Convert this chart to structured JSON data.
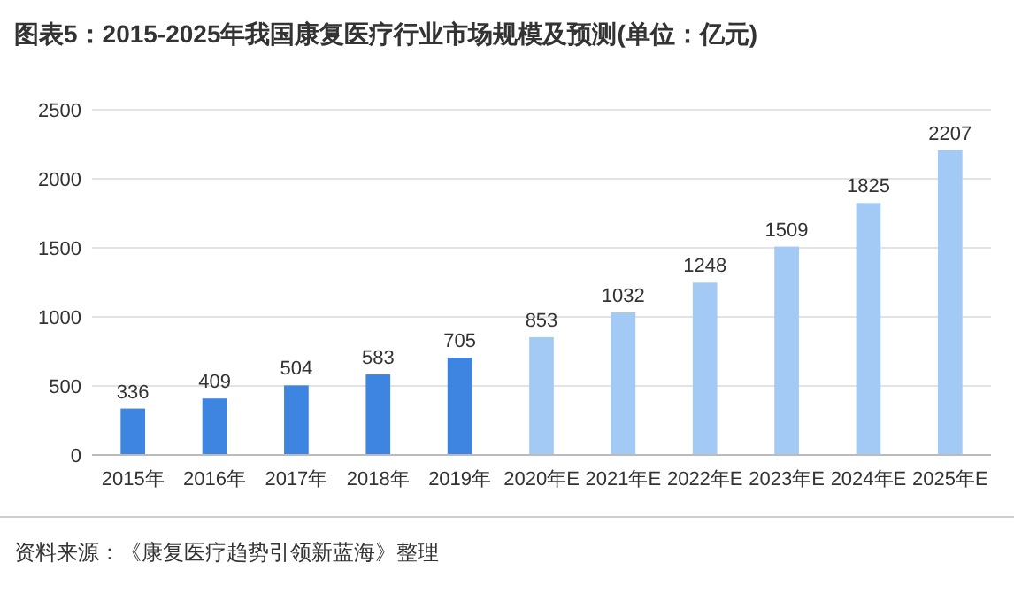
{
  "chart_data": {
    "type": "bar",
    "title": "图表5：2015-2025年我国康复医疗行业市场规模及预测(单位：亿元)",
    "categories": [
      "2015年",
      "2016年",
      "2017年",
      "2018年",
      "2019年",
      "2020年E",
      "2021年E",
      "2022年E",
      "2023年E",
      "2024年E",
      "2025年E"
    ],
    "values": [
      336,
      409,
      504,
      583,
      705,
      853,
      1032,
      1248,
      1509,
      1825,
      2207
    ],
    "colors": [
      "#3d85e0",
      "#3d85e0",
      "#3d85e0",
      "#3d85e0",
      "#3d85e0",
      "#a3c9f5",
      "#a3c9f5",
      "#a3c9f5",
      "#a3c9f5",
      "#a3c9f5",
      "#a3c9f5"
    ],
    "ylim": [
      0,
      2500
    ],
    "yticks": [
      0,
      500,
      1000,
      1500,
      2000,
      2500
    ],
    "grid": "y",
    "data_labels": true,
    "annotations": [
      "资料来源：《康复医疗趋势引领新蓝海》整理"
    ]
  }
}
